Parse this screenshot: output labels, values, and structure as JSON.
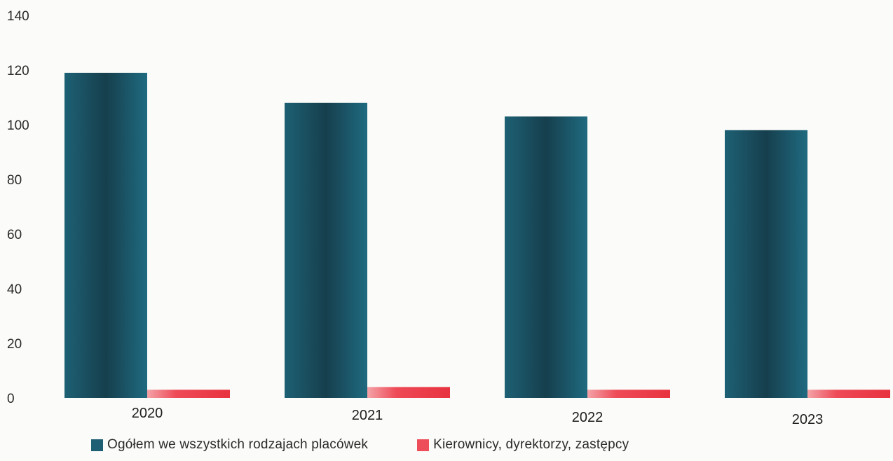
{
  "chart_data": {
    "type": "bar",
    "categories": [
      "2020",
      "2021",
      "2022",
      "2023"
    ],
    "series": [
      {
        "name": "Ogółem we wszystkich rodzajach placówek",
        "values": [
          119,
          108,
          103,
          98
        ],
        "color": "#1f5f73"
      },
      {
        "name": "Kierownicy, dyrektorzy, zastępcy",
        "values": [
          3,
          4,
          3,
          3
        ],
        "color": "#ee4d5a"
      }
    ],
    "y_ticks": [
      0,
      20,
      40,
      60,
      80,
      100,
      120,
      140
    ],
    "ylim": [
      0,
      140
    ],
    "grid": false,
    "legend_position": "bottom"
  }
}
